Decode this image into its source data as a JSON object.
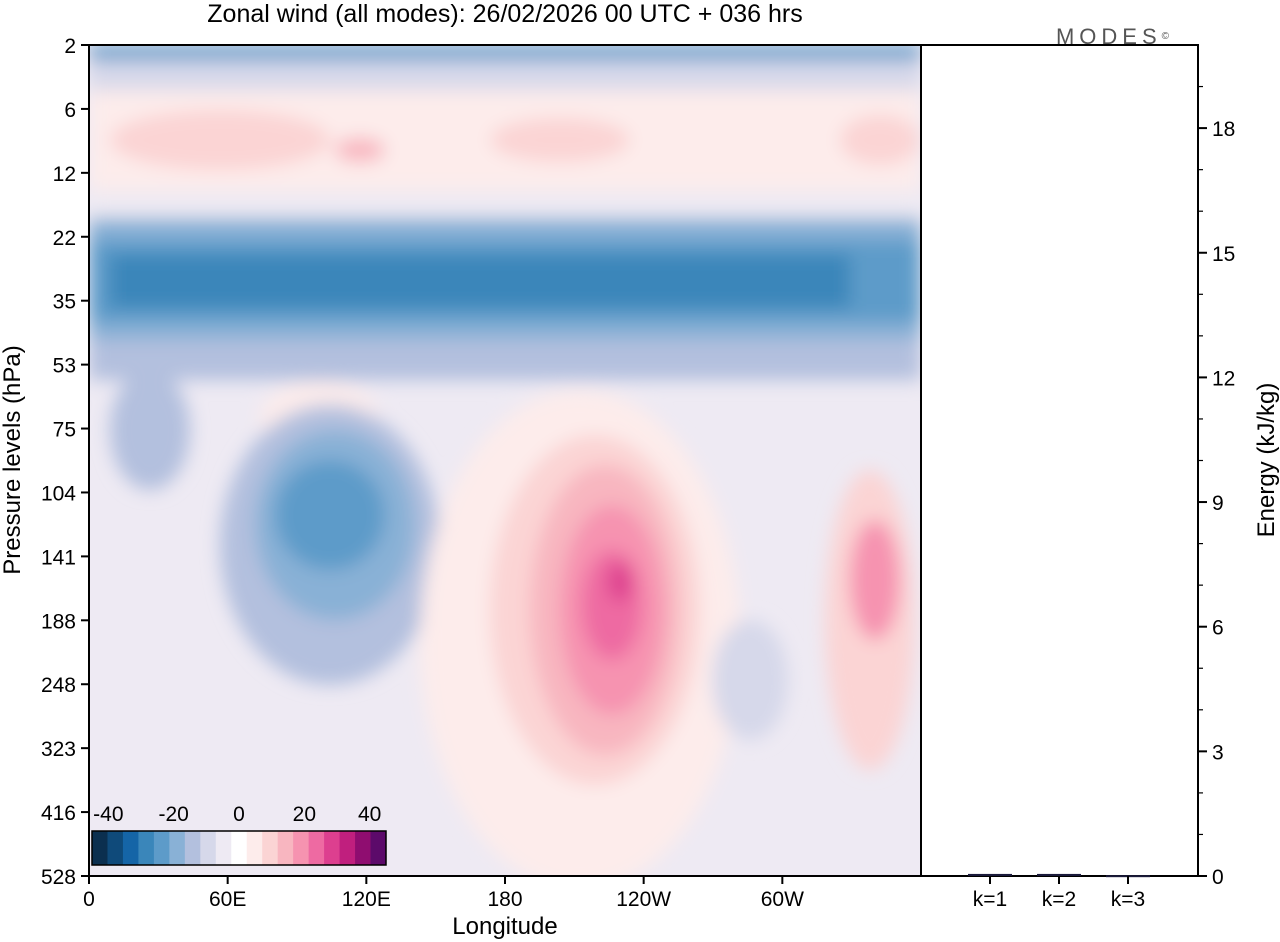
{
  "chart_data": [
    {
      "type": "heatmap",
      "title": "Zonal wind (all modes):  26/02/2026  00 UTC  + 036 hrs",
      "xlabel": "Longitude",
      "ylabel": "Pressure levels (hPa)",
      "x_ticks": [
        "0",
        "60E",
        "120E",
        "180",
        "120W",
        "60W"
      ],
      "y_ticks": [
        "2",
        "6",
        "12",
        "22",
        "35",
        "53",
        "75",
        "104",
        "141",
        "188",
        "248",
        "323",
        "416",
        "528"
      ],
      "colorbar": {
        "ticks": [
          "-40",
          "-20",
          "0",
          "20",
          "40"
        ],
        "range": [
          -45,
          45
        ],
        "colors": [
          "#0b2f4f",
          "#0f4a7a",
          "#1565a7",
          "#3a86ba",
          "#5d9bc9",
          "#89b1d6",
          "#b3c0de",
          "#d6d8ea",
          "#eeeaf3",
          "#ffffff",
          "#fdeceb",
          "#fbd4d4",
          "#f8b6c0",
          "#f693b0",
          "#ee6aa2",
          "#dd3f8f",
          "#c01f7e",
          "#8f0d70",
          "#5c0a6a"
        ]
      },
      "features": [
        {
          "name": "upper easterly band",
          "lon": [
            0,
            360
          ],
          "level_index": [
            0,
            0.4
          ],
          "value": -12
        },
        {
          "name": "stratospheric westerly band",
          "lon": [
            0,
            360
          ],
          "level_index": [
            1,
            2.5
          ],
          "value": 6
        },
        {
          "name": "easterly jet",
          "lon": [
            0,
            360
          ],
          "level_index": [
            3,
            5
          ],
          "value": -24
        },
        {
          "name": "westerly maximum",
          "lon": [
            205,
            260
          ],
          "level_index": [
            7,
            11.5
          ],
          "value": 28
        },
        {
          "name": "easterly core",
          "lon": [
            60,
            140
          ],
          "level_index": [
            6.5,
            10
          ],
          "value": -18
        },
        {
          "name": "westerly lobe",
          "lon": [
            320,
            355
          ],
          "level_index": [
            7,
            11
          ],
          "value": 14
        }
      ]
    },
    {
      "type": "bar",
      "ylabel": "Energy (kJ/kg)",
      "categories": [
        "k=1",
        "k=2",
        "k=3"
      ],
      "values": [
        0.05,
        0.05,
        0.02
      ],
      "ylim": [
        0,
        20
      ],
      "y_ticks": [
        "0",
        "3",
        "6",
        "9",
        "12",
        "15",
        "18"
      ]
    }
  ],
  "logo_text": "MODES",
  "logo_mark": "©"
}
